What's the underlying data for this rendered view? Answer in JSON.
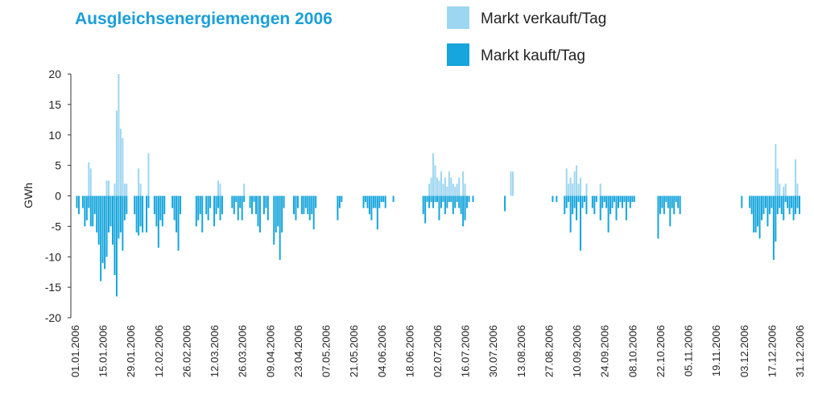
{
  "chart_data": {
    "type": "bar",
    "title": "Ausgleichsenergiemengen 2006",
    "ylabel": "GWh",
    "categories": [
      "01.01.2006",
      null,
      null,
      null,
      null,
      null,
      null,
      null,
      null,
      null,
      null,
      null,
      null,
      null,
      "15.01.2006",
      null,
      null,
      null,
      null,
      null,
      null,
      null,
      null,
      null,
      null,
      null,
      null,
      null,
      "29.01.2006",
      null,
      null,
      null,
      null,
      null,
      null,
      null,
      null,
      null,
      null,
      null,
      null,
      null,
      "12.02.2006",
      null,
      null,
      null,
      null,
      null,
      null,
      null,
      null,
      null,
      null,
      null,
      null,
      null,
      "26.02.2006",
      null,
      null,
      null,
      null,
      null,
      null,
      null,
      null,
      null,
      null,
      null,
      null,
      null,
      "12.03.2006",
      null,
      null,
      null,
      null,
      null,
      null,
      null,
      null,
      null,
      null,
      null,
      null,
      null,
      "26.03.2006",
      null,
      null,
      null,
      null,
      null,
      null,
      null,
      null,
      null,
      null,
      null,
      null,
      null,
      "09.04.2006",
      null,
      null,
      null,
      null,
      null,
      null,
      null,
      null,
      null,
      null,
      null,
      null,
      null,
      "23.04.2006",
      null,
      null,
      null,
      null,
      null,
      null,
      null,
      null,
      null,
      null,
      null,
      null,
      null,
      "07.05.2006",
      null,
      null,
      null,
      null,
      null,
      null,
      null,
      null,
      null,
      null,
      null,
      null,
      null,
      "21.05.2006",
      null,
      null,
      null,
      null,
      null,
      null,
      null,
      null,
      null,
      null,
      null,
      null,
      null,
      "04.06.2006",
      null,
      null,
      null,
      null,
      null,
      null,
      null,
      null,
      null,
      null,
      null,
      null,
      null,
      "18.06.2006",
      null,
      null,
      null,
      null,
      null,
      null,
      null,
      null,
      null,
      null,
      null,
      null,
      null,
      "02.07.2006",
      null,
      null,
      null,
      null,
      null,
      null,
      null,
      null,
      null,
      null,
      null,
      null,
      null,
      "16.07.2006",
      null,
      null,
      null,
      null,
      null,
      null,
      null,
      null,
      null,
      null,
      null,
      null,
      null,
      "30.07.2006",
      null,
      null,
      null,
      null,
      null,
      null,
      null,
      null,
      null,
      null,
      null,
      null,
      null,
      "13.08.2006",
      null,
      null,
      null,
      null,
      null,
      null,
      null,
      null,
      null,
      null,
      null,
      null,
      null,
      "27.08.2006",
      null,
      null,
      null,
      null,
      null,
      null,
      null,
      null,
      null,
      null,
      null,
      null,
      null,
      "10.09.2006",
      null,
      null,
      null,
      null,
      null,
      null,
      null,
      null,
      null,
      null,
      null,
      null,
      null,
      "24.09.2006",
      null,
      null,
      null,
      null,
      null,
      null,
      null,
      null,
      null,
      null,
      null,
      null,
      null,
      "08.10.2006",
      null,
      null,
      null,
      null,
      null,
      null,
      null,
      null,
      null,
      null,
      null,
      null,
      null,
      "22.10.2006",
      null,
      null,
      null,
      null,
      null,
      null,
      null,
      null,
      null,
      null,
      null,
      null,
      null,
      "05.11.2006",
      null,
      null,
      null,
      null,
      null,
      null,
      null,
      null,
      null,
      null,
      null,
      null,
      null,
      "19.11.2006",
      null,
      null,
      null,
      null,
      null,
      null,
      null,
      null,
      null,
      null,
      null,
      null,
      null,
      "03.12.2006",
      null,
      null,
      null,
      null,
      null,
      null,
      null,
      null,
      null,
      null,
      null,
      null,
      null,
      "17.12.2006",
      null,
      null,
      null,
      null,
      null,
      null,
      null,
      null,
      null,
      null,
      null,
      null,
      null,
      "31.12.2006"
    ],
    "series": [
      {
        "name": "Markt verkauft/Tag",
        "color": "#9dd6f1",
        "values": [
          0,
          0,
          0,
          0,
          0,
          0,
          0,
          5.5,
          4.5,
          0,
          0,
          0,
          0,
          0,
          0,
          0,
          2.5,
          2.5,
          0,
          0,
          2,
          14,
          20,
          11,
          9.5,
          2,
          2,
          0,
          0,
          0,
          0,
          0,
          4.5,
          2,
          0,
          0,
          0,
          7,
          0,
          0,
          0,
          0,
          0,
          0,
          0,
          0,
          0,
          0,
          0,
          0,
          0,
          0,
          0,
          0,
          0,
          0,
          0,
          0,
          0,
          0,
          0,
          0,
          0,
          0,
          0,
          0,
          0,
          0,
          0,
          0,
          0,
          0,
          2.5,
          2,
          0,
          0,
          0,
          0,
          0,
          0,
          0,
          0,
          0,
          0,
          0,
          2,
          0,
          0,
          0,
          0,
          0,
          0,
          0,
          0,
          0,
          0,
          0,
          0,
          0,
          0,
          0,
          0,
          0,
          0,
          0,
          0,
          0,
          0,
          0,
          0,
          0,
          0,
          0,
          0,
          0,
          0,
          0,
          0,
          0,
          0,
          0,
          0,
          0,
          0,
          0,
          0,
          0,
          0,
          0,
          0,
          0,
          0,
          0,
          0,
          0,
          0,
          0,
          0,
          0,
          0,
          0,
          0,
          0,
          0,
          0,
          0,
          0,
          0,
          0,
          0,
          0,
          0,
          0,
          0,
          0,
          0,
          0,
          0,
          0,
          0,
          0,
          0,
          0,
          0,
          0,
          0,
          0,
          0,
          0,
          0,
          0,
          0,
          0,
          0,
          0,
          0,
          0,
          0,
          2,
          3,
          7,
          5,
          3,
          2.5,
          4,
          2,
          3,
          1.5,
          4,
          3,
          2,
          1.5,
          2,
          3,
          0,
          4,
          2,
          0,
          0,
          0,
          0,
          0,
          0,
          0,
          0,
          0,
          0,
          0,
          0,
          0,
          0,
          0,
          0,
          0,
          0,
          0,
          0,
          0,
          0,
          4,
          4,
          0,
          0,
          0,
          0,
          0,
          0,
          0,
          0,
          0,
          0,
          0,
          0,
          0,
          0,
          0,
          0,
          0,
          0,
          0,
          0,
          0,
          0,
          0,
          0,
          0,
          0,
          4.5,
          2,
          3,
          2,
          4,
          5,
          2,
          3,
          0,
          0,
          2,
          0,
          0,
          0,
          0,
          0,
          0,
          2,
          0,
          0,
          0,
          0,
          0,
          0,
          0,
          0,
          0,
          0,
          0,
          0,
          0,
          0,
          0,
          0,
          0,
          0,
          0,
          0,
          0,
          0,
          0,
          0,
          0,
          0,
          0,
          0,
          0,
          0,
          0,
          0,
          0,
          0,
          0,
          0,
          0,
          0,
          0,
          0,
          0,
          0,
          0,
          0,
          0,
          0,
          0,
          0,
          0,
          0,
          0,
          0,
          0,
          0,
          0,
          0,
          0,
          0,
          0,
          0,
          0,
          0,
          0,
          0,
          0,
          0,
          0,
          0,
          0,
          0,
          0,
          0,
          0,
          0,
          0,
          0,
          0,
          0,
          0,
          0,
          0,
          0,
          0,
          0,
          0,
          0,
          0,
          8.5,
          4.5,
          2,
          0,
          1.5,
          2,
          0,
          0,
          0,
          0,
          6,
          2,
          0
        ]
      },
      {
        "name": "Markt kauft/Tag",
        "color": "#16a5dc",
        "values": [
          0,
          -2,
          -3,
          0,
          -2,
          -5,
          -4,
          -2,
          -5,
          -5,
          -3,
          -6,
          -8,
          -14,
          -11,
          -12,
          -10,
          -6,
          -5,
          -8,
          -13,
          -16.5,
          -7,
          -6,
          -9,
          -4,
          -3,
          0,
          0,
          0,
          -3,
          -6,
          -6.5,
          -5,
          -6,
          0,
          -6,
          -2,
          0,
          0,
          -3,
          -5,
          -8.5,
          -4,
          -5,
          -3,
          0,
          0,
          0,
          -2,
          -4,
          -6,
          -9,
          -3,
          0,
          0,
          0,
          0,
          0,
          0,
          0,
          -5,
          -4,
          -3,
          -6,
          0,
          -3,
          -4,
          -2,
          0,
          -5,
          -3,
          -2,
          -4,
          -3,
          0,
          0,
          0,
          0,
          -2,
          -3,
          -1,
          -4,
          -2,
          -4,
          -1,
          0,
          0,
          -2,
          -3,
          -1,
          -3,
          -5,
          -6,
          0,
          -3,
          -2,
          -4,
          0,
          0,
          -8,
          -6,
          -5,
          -10.5,
          -6,
          -2,
          0,
          0,
          0,
          0,
          -3,
          -4,
          -2,
          0,
          -3,
          -3,
          -2,
          -3,
          -4,
          -3,
          -5.5,
          -2,
          0,
          0,
          0,
          0,
          0,
          0,
          0,
          0,
          0,
          0,
          -4,
          -2,
          -1,
          0,
          0,
          0,
          0,
          0,
          0,
          0,
          0,
          0,
          0,
          -2,
          -1,
          -2,
          -3,
          -4,
          -2,
          -2,
          -5.5,
          -2,
          -1,
          -1,
          -2,
          0,
          0,
          0,
          -1,
          0,
          0,
          0,
          0,
          0,
          0,
          0,
          0,
          0,
          0,
          0,
          0,
          0,
          0,
          -3,
          -4.5,
          -1,
          -2,
          -1,
          -2,
          -1,
          -1,
          -4,
          -2,
          -1,
          -3,
          -2,
          -1,
          -1,
          -3,
          -2,
          -1,
          -2,
          -3,
          -5,
          -4,
          -2,
          -1,
          0,
          -1,
          0,
          0,
          0,
          0,
          0,
          0,
          0,
          0,
          0,
          0,
          0,
          0,
          0,
          0,
          0,
          -2.5,
          0,
          0,
          0,
          0,
          0,
          0,
          0,
          0,
          0,
          0,
          0,
          0,
          0,
          0,
          0,
          0,
          0,
          0,
          0,
          0,
          0,
          0,
          0,
          -1,
          0,
          -1,
          0,
          0,
          0,
          -3,
          -2,
          -1,
          -6,
          -3,
          -2,
          -4,
          -1,
          -9,
          -2,
          -1,
          -3,
          0,
          0,
          -2,
          -3,
          -1,
          0,
          -4,
          -2,
          -1,
          -2,
          -6,
          -3,
          -2,
          -1,
          -4,
          -2,
          -1,
          -2,
          -1,
          -4,
          -1,
          -2,
          -1,
          -1,
          0,
          0,
          0,
          0,
          0,
          0,
          0,
          0,
          0,
          0,
          0,
          -7,
          -3,
          -2,
          -3,
          -1,
          -2,
          -5,
          -2,
          -3,
          -1,
          -2,
          -3,
          0,
          0,
          0,
          0,
          0,
          0,
          0,
          0,
          0,
          0,
          0,
          0,
          0,
          0,
          0,
          0,
          0,
          0,
          0,
          0,
          0,
          0,
          0,
          0,
          0,
          0,
          0,
          0,
          0,
          0,
          -2,
          0,
          0,
          0,
          -2,
          -3,
          -6,
          -6,
          -5,
          -7,
          -4,
          -3,
          -2,
          -5,
          -3,
          -2,
          -10.5,
          -7.5,
          -3,
          -2,
          -3,
          -4,
          -1,
          -2,
          -3,
          -2,
          -4,
          -3,
          -2,
          -3
        ]
      }
    ],
    "ylim": [
      -20,
      20
    ],
    "yticks": [
      -20,
      -15,
      -10,
      -5,
      0,
      5,
      10,
      15,
      20
    ]
  }
}
